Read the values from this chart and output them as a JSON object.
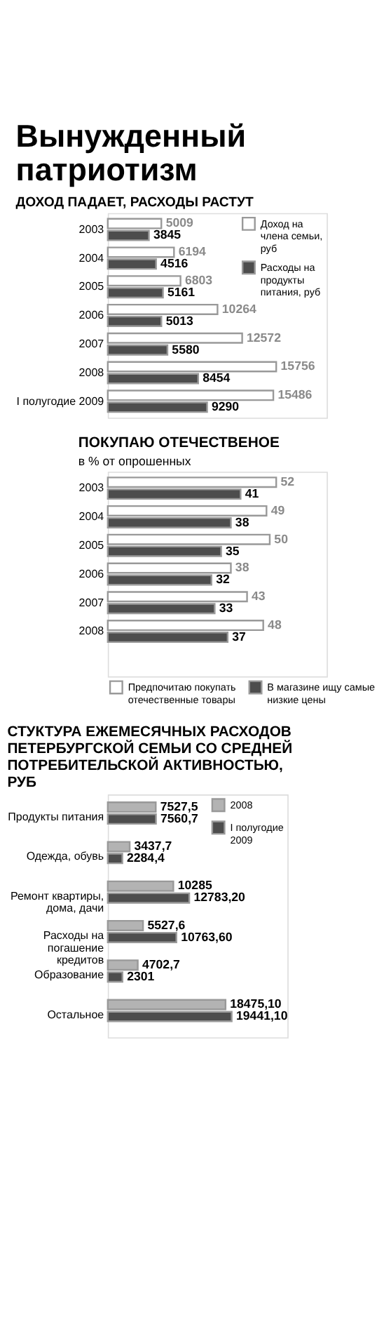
{
  "chart_data": [
    {
      "type": "bar",
      "orientation": "horizontal",
      "title": "Вынужденный патриотизм",
      "subtitle": "ДОХОД ПАДАЕТ, РАСХОДЫ РАСТУТ",
      "categories": [
        "2003",
        "2004",
        "2005",
        "2006",
        "2007",
        "2008",
        "I полугодие 2009"
      ],
      "data_labels": true,
      "legend": "top right",
      "tick_labels": "y",
      "series": [
        {
          "name": "Доход на члена семьи, руб",
          "color": "#ffffff",
          "values": [
            5009,
            6194,
            6803,
            10264,
            12572,
            15756,
            15486
          ]
        },
        {
          "name": "Расходы на продукты питания, руб",
          "color": "#4d4d4d",
          "values": [
            3845,
            4516,
            5161,
            5013,
            5580,
            8454,
            9290
          ]
        }
      ]
    },
    {
      "type": "bar",
      "orientation": "horizontal",
      "title": "ПОКУПАЮ ОТЕЧЕСТВЕНОЕ",
      "subtitle": "в % от опрошенных",
      "categories": [
        "2003",
        "2004",
        "2005",
        "2006",
        "2007",
        "2008",
        null
      ],
      "data_labels": true,
      "legend": "bottom",
      "tick_labels": "y",
      "series": [
        {
          "name": "Предпочитаю покупать отечественные товары",
          "color": "#ffffff",
          "values": [
            52,
            49,
            50,
            38,
            43,
            48,
            null
          ]
        },
        {
          "name": "В магазине ищу самые низкие цены",
          "color": "#4d4d4d",
          "values": [
            41,
            38,
            35,
            32,
            33,
            37,
            null
          ]
        }
      ]
    },
    {
      "type": "bar",
      "orientation": "horizontal",
      "title": "СТУКТУРА ЕЖЕМЕСЯЧНЫХ РАСХОДОВ ПЕТЕРБУРГСКОЙ СЕМЬИ СО СРЕДНЕЙ ПОТРЕБИТЕЛЬСКОЙ АКТИВНОСТЬЮ, РУБ",
      "categories": [
        "Продукты питания",
        "Одежда, обувь",
        "Ремонт квартиры, дома, дачи",
        "Расходы на погашение кредитов",
        "Образование",
        "Остальное"
      ],
      "legend": "top right",
      "tick_labels": "y",
      "series": [
        {
          "name": "2008",
          "color": "#b3b3b3",
          "values": [
            7527.5,
            3437.7,
            10285,
            5527.6,
            4702.7,
            18475.1
          ],
          "value_labels": [
            "7527,5",
            "3437,7",
            "10285",
            "5527,6",
            "4702,7",
            "18475,10"
          ]
        },
        {
          "name": "I полугодие 2009",
          "color": "#4d4d4d",
          "values": [
            7560.7,
            2284.4,
            12783.2,
            10763.6,
            2301,
            19441.1
          ],
          "value_labels": [
            "7560,7",
            "2284,4",
            "12783,20",
            "10763,60",
            "2301",
            "19441,10"
          ]
        }
      ]
    }
  ]
}
